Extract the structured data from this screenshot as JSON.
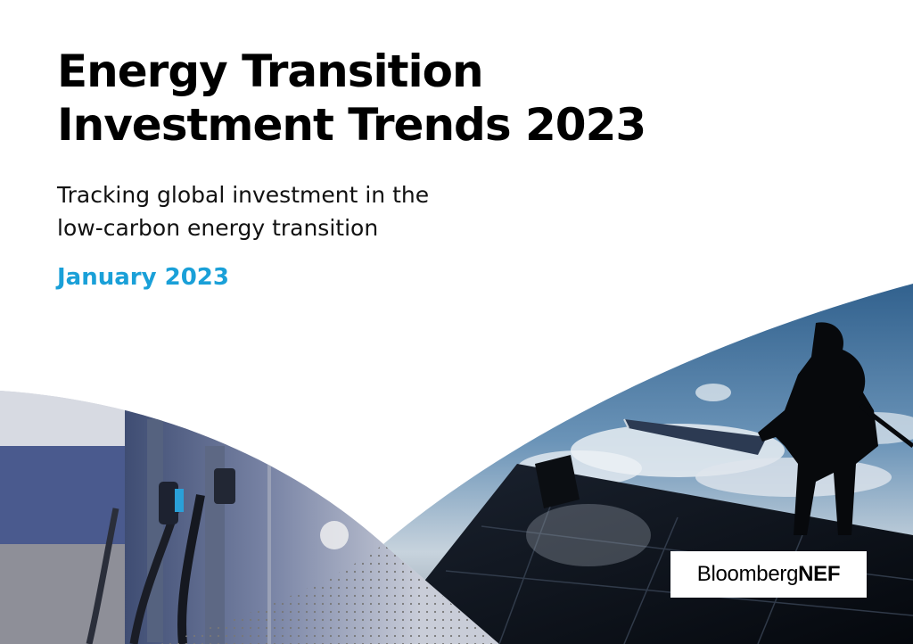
{
  "cover": {
    "title_line1": "Energy Transition",
    "title_line2": "Investment Trends 2023",
    "subtitle_line1": "Tracking global investment in the",
    "subtitle_line2": "low-carbon energy transition",
    "date": "January 2023"
  },
  "logo": {
    "part1": "Bloomberg",
    "part2": "NEF"
  },
  "colors": {
    "accent": "#1aa0d8",
    "text": "#000000",
    "background": "#ffffff"
  }
}
